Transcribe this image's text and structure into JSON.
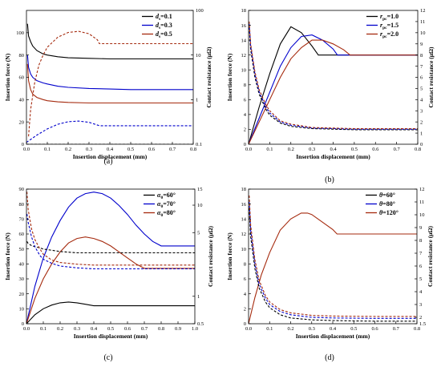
{
  "chart_data": [
    {
      "type": "line",
      "panel_label": "(a)",
      "xlabel": "Insertion displacement (mm)",
      "ylabel": "Insertion force (N)",
      "y2label": "Contact resistance (μΩ)",
      "xlim": [
        0,
        0.8
      ],
      "ylim": [
        0,
        120
      ],
      "y2lim": [
        0.1,
        100
      ],
      "y2scale": "log",
      "x_ticks": [
        "0.0",
        "0.1",
        "0.2",
        "0.3",
        "0.4",
        "0.5",
        "0.6",
        "0.7",
        "0.8"
      ],
      "y_ticks": [
        "0",
        "20",
        "40",
        "60",
        "80",
        "100"
      ],
      "y2_ticks": [
        "0.1",
        "1",
        "10",
        "100"
      ],
      "legend": {
        "position": "top-right",
        "entries": [
          {
            "sym": "d",
            "sub": "s",
            "val": "=0.1",
            "color": "#000000"
          },
          {
            "sym": "d",
            "sub": "s",
            "val": "=0.3",
            "color": "#0000cc"
          },
          {
            "sym": "d",
            "sub": "s",
            "val": "=0.5",
            "color": "#a52a0e"
          }
        ]
      },
      "series": [
        {
          "axis": "force",
          "color": "#000000",
          "dashed": false,
          "x": [
            0.005,
            0.01,
            0.02,
            0.03,
            0.05,
            0.08,
            0.1,
            0.15,
            0.2,
            0.3,
            0.4,
            0.5,
            0.6,
            0.7,
            0.8
          ],
          "y": [
            108,
            97,
            92,
            88,
            84,
            81,
            80,
            78.5,
            77.5,
            77,
            76.5,
            76.5,
            76.5,
            76.5,
            76.5
          ]
        },
        {
          "axis": "force",
          "color": "#0000cc",
          "dashed": false,
          "x": [
            0.005,
            0.01,
            0.02,
            0.03,
            0.05,
            0.08,
            0.1,
            0.15,
            0.2,
            0.3,
            0.4,
            0.5,
            0.6,
            0.7,
            0.8
          ],
          "y": [
            80,
            69,
            63,
            60,
            57,
            55,
            54,
            52,
            51,
            50,
            49.5,
            49,
            49,
            49,
            49
          ]
        },
        {
          "axis": "force",
          "color": "#a52a0e",
          "dashed": false,
          "x": [
            0.005,
            0.01,
            0.02,
            0.03,
            0.05,
            0.08,
            0.1,
            0.15,
            0.2,
            0.3,
            0.4,
            0.5,
            0.6,
            0.7,
            0.8
          ],
          "y": [
            72,
            57,
            49,
            45,
            42,
            40,
            39,
            38,
            37.5,
            37,
            37,
            37,
            37,
            37,
            37
          ]
        },
        {
          "axis": "resistance",
          "color": "#a52a0e",
          "dashed": true,
          "x": [
            0.01,
            0.02,
            0.04,
            0.06,
            0.08,
            0.1,
            0.15,
            0.2,
            0.25,
            0.3,
            0.34,
            0.35,
            0.4,
            0.5,
            0.6,
            0.7,
            0.8
          ],
          "y": [
            0.15,
            0.6,
            2.5,
            6,
            10,
            15,
            25,
            32,
            34,
            30,
            22,
            18,
            18,
            18,
            18,
            18,
            18
          ]
        },
        {
          "axis": "resistance",
          "color": "#0000cc",
          "dashed": true,
          "x": [
            0.0,
            0.05,
            0.1,
            0.15,
            0.2,
            0.25,
            0.3,
            0.35,
            0.4,
            0.5,
            0.6,
            0.7,
            0.8
          ],
          "y": [
            0.11,
            0.16,
            0.22,
            0.28,
            0.32,
            0.33,
            0.31,
            0.26,
            0.26,
            0.26,
            0.26,
            0.26,
            0.26
          ]
        },
        {
          "axis": "resistance",
          "color": "#000000",
          "dashed": true,
          "x": [
            0,
            0.8
          ],
          "y": [
            0.1,
            0.1
          ]
        }
      ]
    },
    {
      "type": "line",
      "panel_label": "(b)",
      "xlabel": "Insertion displacement (mm)",
      "ylabel": "Insertion force (N)",
      "y2label": "Contact resistance (μΩ)",
      "xlim": [
        0,
        0.8
      ],
      "ylim": [
        0,
        18
      ],
      "y2lim": [
        0,
        12
      ],
      "x_ticks": [
        "0.0",
        "0.1",
        "0.2",
        "0.3",
        "0.4",
        "0.5",
        "0.6",
        "0.7",
        "0.8"
      ],
      "y_ticks": [
        "0",
        "2",
        "4",
        "6",
        "8",
        "10",
        "12",
        "14",
        "16",
        "18"
      ],
      "y2_ticks": [
        "0",
        "1",
        "2",
        "3",
        "4",
        "5",
        "6",
        "7",
        "8",
        "9",
        "10",
        "11",
        "12"
      ],
      "legend": {
        "position": "top-right",
        "entries": [
          {
            "sym": "r",
            "sub": "pc",
            "val": "=1.0",
            "color": "#000000"
          },
          {
            "sym": "r",
            "sub": "pc",
            "val": "=1.5",
            "color": "#0000cc"
          },
          {
            "sym": "r",
            "sub": "pc",
            "val": "=2.0",
            "color": "#a52a0e"
          }
        ]
      },
      "series": [
        {
          "axis": "force",
          "color": "#000000",
          "dashed": false,
          "x": [
            0,
            0.05,
            0.1,
            0.15,
            0.2,
            0.25,
            0.3,
            0.33,
            0.4,
            0.5,
            0.6,
            0.7,
            0.8
          ],
          "y": [
            0,
            5,
            9.5,
            13.5,
            15.8,
            15,
            13.2,
            12,
            12,
            12,
            12,
            12,
            12
          ]
        },
        {
          "axis": "force",
          "color": "#0000cc",
          "dashed": false,
          "x": [
            0,
            0.05,
            0.1,
            0.15,
            0.2,
            0.25,
            0.3,
            0.35,
            0.4,
            0.42,
            0.5,
            0.6,
            0.7,
            0.8
          ],
          "y": [
            0,
            3.5,
            7,
            10.5,
            13,
            14.5,
            14.7,
            14,
            12.8,
            12,
            12,
            12,
            12,
            12
          ]
        },
        {
          "axis": "force",
          "color": "#a52a0e",
          "dashed": false,
          "x": [
            0,
            0.05,
            0.1,
            0.15,
            0.2,
            0.25,
            0.3,
            0.35,
            0.4,
            0.45,
            0.48,
            0.5,
            0.6,
            0.7,
            0.8
          ],
          "y": [
            0,
            3,
            6,
            9,
            11.5,
            13,
            14,
            14,
            13.5,
            12.7,
            12,
            12,
            12,
            12,
            12
          ]
        },
        {
          "axis": "resistance",
          "color": "#000000",
          "dashed": true,
          "x": [
            0.003,
            0.01,
            0.03,
            0.05,
            0.08,
            0.1,
            0.15,
            0.2,
            0.3,
            0.4,
            0.5,
            0.6,
            0.7,
            0.8
          ],
          "y": [
            10.5,
            8.5,
            6,
            4.5,
            3.2,
            2.6,
            1.9,
            1.6,
            1.4,
            1.35,
            1.3,
            1.3,
            1.3,
            1.3
          ]
        },
        {
          "axis": "resistance",
          "color": "#0000cc",
          "dashed": true,
          "x": [
            0.003,
            0.01,
            0.03,
            0.05,
            0.08,
            0.1,
            0.15,
            0.2,
            0.3,
            0.4,
            0.5,
            0.6,
            0.7,
            0.8
          ],
          "y": [
            10.8,
            8.8,
            6.3,
            4.7,
            3.4,
            2.8,
            2.0,
            1.7,
            1.45,
            1.4,
            1.35,
            1.35,
            1.35,
            1.35
          ]
        },
        {
          "axis": "resistance",
          "color": "#a52a0e",
          "dashed": true,
          "x": [
            0.003,
            0.01,
            0.03,
            0.05,
            0.08,
            0.1,
            0.15,
            0.2,
            0.3,
            0.4,
            0.5,
            0.6,
            0.7,
            0.8
          ],
          "y": [
            11,
            9,
            6.5,
            4.9,
            3.6,
            3.0,
            2.1,
            1.8,
            1.5,
            1.45,
            1.4,
            1.4,
            1.4,
            1.4
          ]
        }
      ]
    },
    {
      "type": "line",
      "panel_label": "(c)",
      "xlabel": "Insertion displacement (mm)",
      "ylabel": "Insertion force (N)",
      "y2label": "Contact resistance (μΩ)",
      "xlim": [
        0,
        1.0
      ],
      "ylim": [
        0,
        90
      ],
      "y2lim": [
        0.5,
        15
      ],
      "y2scale": "log",
      "x_ticks": [
        "0.0",
        "0.1",
        "0.2",
        "0.3",
        "0.4",
        "0.5",
        "0.6",
        "0.7",
        "0.8",
        "0.9",
        "1.0"
      ],
      "y_ticks": [
        "0",
        "10",
        "20",
        "30",
        "40",
        "50",
        "60",
        "70",
        "80",
        "90"
      ],
      "y2_ticks": [
        "0.5",
        "1",
        "5",
        "10",
        "15"
      ],
      "legend": {
        "position": "top-right",
        "entries": [
          {
            "sym": "α",
            "sub": "0",
            "val": "=60°",
            "color": "#000000"
          },
          {
            "sym": "α",
            "sub": "0",
            "val": "=70°",
            "color": "#0000cc"
          },
          {
            "sym": "α",
            "sub": "0",
            "val": "=80°",
            "color": "#a52a0e"
          }
        ]
      },
      "series": [
        {
          "axis": "force",
          "color": "#0000cc",
          "dashed": false,
          "x": [
            0,
            0.05,
            0.1,
            0.15,
            0.2,
            0.25,
            0.3,
            0.35,
            0.4,
            0.45,
            0.5,
            0.55,
            0.6,
            0.65,
            0.7,
            0.75,
            0.8,
            0.85,
            0.9,
            1.0
          ],
          "y": [
            0,
            25,
            44,
            58,
            69,
            78,
            84,
            87,
            88,
            87,
            84,
            79,
            73,
            66,
            60,
            55,
            52,
            52,
            52,
            52
          ]
        },
        {
          "axis": "force",
          "color": "#a52a0e",
          "dashed": false,
          "x": [
            0,
            0.05,
            0.1,
            0.15,
            0.2,
            0.25,
            0.3,
            0.35,
            0.4,
            0.45,
            0.5,
            0.55,
            0.6,
            0.65,
            0.7,
            0.75,
            0.8,
            0.9,
            1.0
          ],
          "y": [
            0,
            17,
            30,
            40,
            48,
            54,
            57,
            58,
            57,
            55,
            52,
            48,
            44,
            40,
            37,
            37,
            37,
            37,
            37
          ]
        },
        {
          "axis": "force",
          "color": "#000000",
          "dashed": false,
          "x": [
            0,
            0.05,
            0.1,
            0.15,
            0.2,
            0.25,
            0.3,
            0.35,
            0.4,
            0.5,
            0.6,
            0.7,
            0.8,
            0.9,
            1.0
          ],
          "y": [
            0,
            6,
            10,
            12.5,
            14,
            14.5,
            14,
            13,
            12,
            12,
            12,
            12,
            12,
            12,
            12
          ]
        },
        {
          "axis": "resistance",
          "color": "#000000",
          "dashed": true,
          "x": [
            0.003,
            0.01,
            0.03,
            0.05,
            0.08,
            0.1,
            0.15,
            0.2,
            0.3,
            0.4,
            0.5,
            0.6,
            0.7,
            0.8,
            0.9,
            1.0
          ],
          "y": [
            4,
            3.8,
            3.6,
            3.5,
            3.4,
            3.3,
            3.2,
            3.1,
            3.0,
            3.0,
            3.0,
            3.0,
            3.0,
            3.0,
            3.0,
            3.0
          ]
        },
        {
          "axis": "resistance",
          "color": "#a52a0e",
          "dashed": true,
          "x": [
            0.003,
            0.01,
            0.03,
            0.05,
            0.08,
            0.1,
            0.15,
            0.2,
            0.3,
            0.4,
            0.5,
            0.6,
            0.7,
            0.8,
            0.9,
            1.0
          ],
          "y": [
            14,
            9,
            5.5,
            4.2,
            3.3,
            2.9,
            2.5,
            2.35,
            2.25,
            2.2,
            2.2,
            2.2,
            2.2,
            2.2,
            2.2,
            2.2
          ]
        },
        {
          "axis": "resistance",
          "color": "#0000cc",
          "dashed": true,
          "x": [
            0.003,
            0.01,
            0.03,
            0.05,
            0.08,
            0.1,
            0.15,
            0.2,
            0.3,
            0.4,
            0.5,
            0.6,
            0.7,
            0.8,
            0.9,
            1.0
          ],
          "y": [
            8,
            6.5,
            4.5,
            3.5,
            2.8,
            2.55,
            2.3,
            2.15,
            2.05,
            2.0,
            2.0,
            2.0,
            2.0,
            2.0,
            2.0,
            2.0
          ]
        }
      ]
    },
    {
      "type": "line",
      "panel_label": "(d)",
      "xlabel": "Insertion displacement (mm)",
      "ylabel": "Insertion force (N)",
      "y2label": "Contact resistance (μΩ)",
      "xlim": [
        0,
        0.8
      ],
      "ylim": [
        0,
        18
      ],
      "y2lim": [
        1.5,
        12
      ],
      "x_ticks": [
        "0.0",
        "0.1",
        "0.2",
        "0.3",
        "0.4",
        "0.5",
        "0.6",
        "0.7",
        "0.8"
      ],
      "y_ticks": [
        "0",
        "2",
        "4",
        "6",
        "8",
        "10",
        "12",
        "14",
        "16",
        "18"
      ],
      "y2_ticks": [
        "1.5",
        "2",
        "3",
        "4",
        "5",
        "6",
        "7",
        "8",
        "9",
        "10",
        "11",
        "12"
      ],
      "legend": {
        "position": "top-right",
        "entries": [
          {
            "sym": "θ",
            "sub": "",
            "val": "=60°",
            "color": "#000000"
          },
          {
            "sym": "θ",
            "sub": "",
            "val": "=80°",
            "color": "#0000cc"
          },
          {
            "sym": "θ",
            "sub": "",
            "val": "=120°",
            "color": "#a52a0e"
          }
        ]
      },
      "series": [
        {
          "axis": "force",
          "color": "#a52a0e",
          "dashed": false,
          "x": [
            0,
            0.03,
            0.06,
            0.1,
            0.15,
            0.2,
            0.25,
            0.28,
            0.3,
            0.35,
            0.4,
            0.42,
            0.5,
            0.6,
            0.7,
            0.8
          ],
          "y": [
            0,
            3.5,
            6.5,
            9.5,
            12.5,
            14,
            14.8,
            14.8,
            14.6,
            13.6,
            12.6,
            12,
            12,
            12,
            12,
            12
          ]
        },
        {
          "axis": "resistance",
          "color": "#000000",
          "dashed": true,
          "x": [
            0.003,
            0.01,
            0.03,
            0.05,
            0.08,
            0.1,
            0.15,
            0.2,
            0.3,
            0.4,
            0.5,
            0.6,
            0.7,
            0.8
          ],
          "y": [
            10.5,
            8.3,
            5.8,
            4.3,
            3.2,
            2.75,
            2.2,
            1.95,
            1.8,
            1.75,
            1.72,
            1.7,
            1.7,
            1.7
          ]
        },
        {
          "axis": "resistance",
          "color": "#0000cc",
          "dashed": true,
          "x": [
            0.003,
            0.01,
            0.03,
            0.05,
            0.08,
            0.1,
            0.15,
            0.2,
            0.3,
            0.4,
            0.5,
            0.6,
            0.7,
            0.8
          ],
          "y": [
            11,
            8.8,
            6.2,
            4.6,
            3.5,
            3.0,
            2.45,
            2.2,
            2.0,
            1.95,
            1.93,
            1.92,
            1.92,
            1.92
          ]
        },
        {
          "axis": "resistance",
          "color": "#a52a0e",
          "dashed": true,
          "x": [
            0.003,
            0.01,
            0.03,
            0.05,
            0.08,
            0.1,
            0.15,
            0.2,
            0.3,
            0.4,
            0.5,
            0.6,
            0.7,
            0.8
          ],
          "y": [
            11.5,
            9.2,
            6.5,
            4.9,
            3.7,
            3.2,
            2.6,
            2.35,
            2.15,
            2.1,
            2.08,
            2.07,
            2.07,
            2.07
          ]
        }
      ]
    }
  ]
}
